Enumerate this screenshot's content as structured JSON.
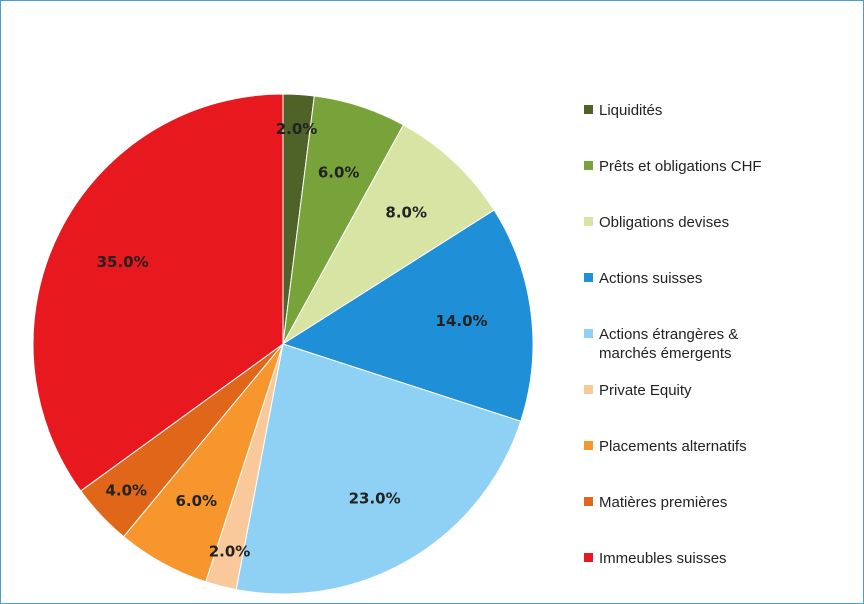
{
  "chart_data": {
    "type": "pie",
    "categories": [
      "Liquidités",
      "Prêts et obligations CHF",
      "Obligations devises",
      "Actions suisses",
      "Actions étrangères & marchés émergents",
      "Private Equity",
      "Placements alternatifs",
      "Matières premières",
      "Immeubles suisses"
    ],
    "values": [
      2,
      6,
      8,
      14,
      23,
      2,
      6,
      4,
      35
    ],
    "value_labels": [
      "2.0%",
      "6.0%",
      "8.0%",
      "14.0%",
      "23.0%",
      "2.0%",
      "6.0%",
      "4.0%",
      "35.0%"
    ],
    "colors": [
      "#4f6228",
      "#77a33a",
      "#d7e4a3",
      "#1f8fd8",
      "#8fd0f5",
      "#f9c99b",
      "#f7962d",
      "#e0661a",
      "#e8191e"
    ],
    "legend": "right"
  }
}
